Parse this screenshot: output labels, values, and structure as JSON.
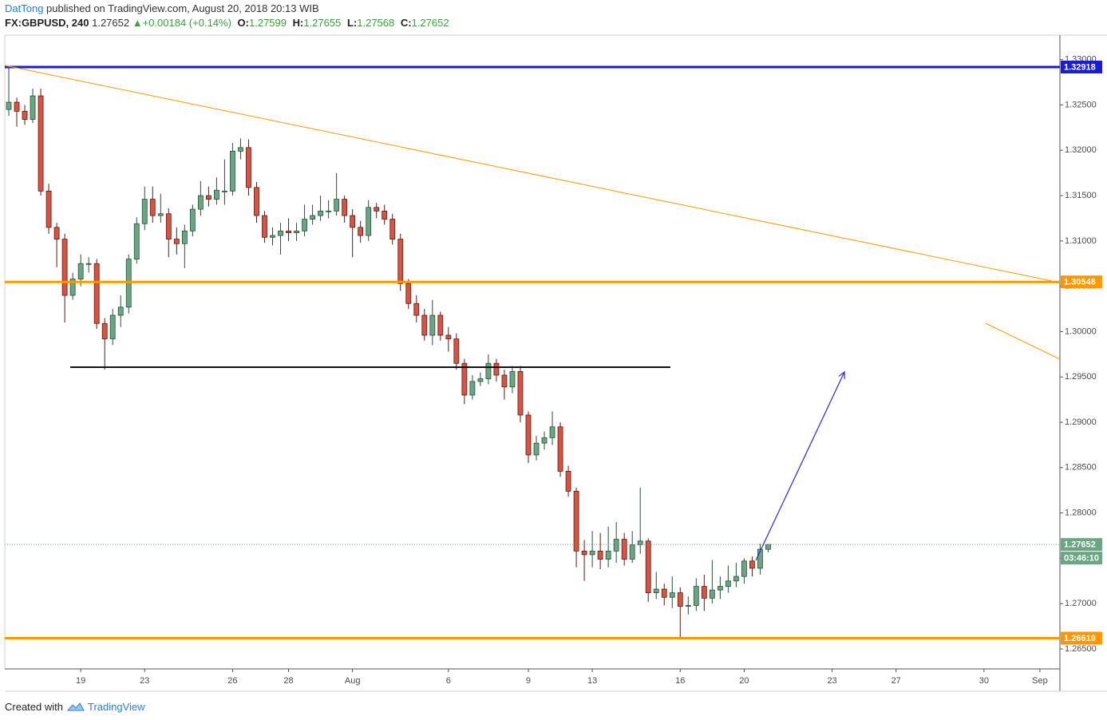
{
  "header": {
    "author": "DatTong",
    "published": "published on TradingView.com, August 20, 2018 20:13 WIB",
    "symbol": "FX:GBPUSD, 240",
    "change": "+0.00184 (+0.14%)",
    "o_label": "O:",
    "h_label": "H:",
    "l_label": "L:",
    "c_label": "C:"
  },
  "footer": {
    "created": "Created with",
    "brand": "TradingView"
  },
  "chart_data": {
    "type": "candlestick",
    "categories": [
      null,
      null,
      null,
      null,
      null,
      null,
      null,
      null,
      null,
      "19",
      null,
      null,
      null,
      null,
      null,
      null,
      null,
      "23",
      null,
      null,
      null,
      null,
      null,
      null,
      null,
      null,
      null,
      null,
      "26",
      null,
      null,
      null,
      null,
      null,
      null,
      "28",
      null,
      null,
      null,
      null,
      null,
      null,
      null,
      "Aug",
      null,
      null,
      null,
      null,
      null,
      null,
      null,
      null,
      null,
      null,
      null,
      "6",
      null,
      null,
      null,
      null,
      null,
      null,
      null,
      null,
      null,
      "9",
      null,
      null,
      null,
      null,
      null,
      null,
      null,
      "13",
      null,
      null,
      null,
      null,
      null,
      null,
      null,
      null,
      null,
      null,
      "16",
      null,
      null,
      null,
      null,
      null,
      null,
      null,
      "20",
      null,
      null,
      null,
      null,
      null,
      null,
      null,
      null,
      null,
      null,
      "23",
      null,
      null,
      null,
      null,
      null,
      null,
      null,
      "27",
      null,
      null,
      null,
      null,
      null,
      null,
      null,
      null,
      null,
      null,
      "30",
      null,
      null,
      null,
      null,
      null,
      null,
      "Sep",
      null,
      null
    ],
    "open": [
      1.3245,
      1.3253,
      1.3243,
      1.3234,
      1.326,
      1.3155,
      1.3115,
      1.3102,
      1.304,
      1.3058,
      1.3075,
      1.3075,
      1.3009,
      1.2992,
      1.3018,
      1.3027,
      1.308,
      1.3119,
      1.3146,
      1.3128,
      1.313,
      1.3102,
      1.3097,
      1.3111,
      1.3135,
      1.315,
      1.3146,
      1.3155,
      1.3155,
      1.3199,
      1.3203,
      1.3159,
      1.3128,
      1.3104,
      1.3106,
      1.3111,
      1.3109,
      1.3111,
      1.3124,
      1.3128,
      1.3133,
      1.3133,
      1.3146,
      1.3128,
      1.3115,
      1.3106,
      1.3137,
      1.3133,
      1.3124,
      1.3102,
      1.3053,
      1.3031,
      1.3018,
      1.2996,
      1.3018,
      1.2996,
      1.2992,
      1.2965,
      1.293,
      1.2945,
      1.2948,
      1.2965,
      1.2952,
      1.2939,
      1.2956,
      1.2908,
      1.2864,
      1.2877,
      1.2883,
      1.2895,
      1.2846,
      1.2824,
      1.2758,
      1.2754,
      1.2758,
      1.2749,
      1.2758,
      1.2771,
      1.2749,
      1.2765,
      1.2769,
      1.2712,
      1.2716,
      1.2707,
      1.2712,
      1.2697,
      1.2698,
      1.2719,
      1.2706,
      1.2715,
      1.2719,
      1.2725,
      1.273,
      1.2747,
      1.2739,
      1.27599,
      null,
      null,
      null,
      null,
      null,
      null,
      null,
      null,
      null,
      null,
      null,
      null,
      null,
      null,
      null,
      null,
      null,
      null,
      null,
      null,
      null,
      null,
      null,
      null,
      null,
      null,
      null,
      null,
      null,
      null,
      null,
      null,
      null,
      null,
      null,
      null
    ],
    "high": [
      1.3292,
      1.3258,
      1.325,
      1.3268,
      1.3268,
      1.3163,
      1.312,
      1.3108,
      1.3065,
      1.3085,
      1.3082,
      1.308,
      1.3015,
      1.3025,
      1.304,
      1.3085,
      1.3126,
      1.316,
      1.316,
      1.3152,
      1.3136,
      1.3115,
      1.3118,
      1.314,
      1.3166,
      1.316,
      1.317,
      1.319,
      1.3208,
      1.3213,
      1.3212,
      1.3165,
      1.3133,
      1.3115,
      1.312,
      1.3125,
      1.312,
      1.314,
      1.314,
      1.315,
      1.3145,
      1.3175,
      1.315,
      1.3135,
      1.3122,
      1.3145,
      1.3142,
      1.314,
      1.313,
      1.3108,
      1.3058,
      1.304,
      1.3025,
      1.3035,
      1.3022,
      1.3005,
      1.2998,
      1.297,
      1.2952,
      1.2955,
      1.2975,
      1.297,
      1.2958,
      1.2962,
      1.2962,
      1.2912,
      1.2885,
      1.289,
      1.2912,
      1.29,
      1.2852,
      1.2828,
      1.277,
      1.278,
      1.2778,
      1.2785,
      1.279,
      1.2778,
      1.278,
      1.2828,
      1.2772,
      1.2735,
      1.2722,
      1.273,
      1.2718,
      1.2708,
      1.2728,
      1.2732,
      1.2748,
      1.273,
      1.2742,
      1.2745,
      1.275,
      1.2752,
      1.2766,
      1.27655,
      null,
      null,
      null,
      null,
      null,
      null,
      null,
      null,
      null,
      null,
      null,
      null,
      null,
      null,
      null,
      null,
      null,
      null,
      null,
      null,
      null,
      null,
      null,
      null,
      null,
      null,
      null,
      null,
      null,
      null,
      null,
      null,
      null,
      null,
      null,
      null
    ],
    "low": [
      1.3238,
      1.3226,
      1.3228,
      1.323,
      1.315,
      1.3108,
      1.3071,
      1.301,
      1.3035,
      1.305,
      1.3065,
      1.3003,
      1.2958,
      1.2985,
      1.3005,
      1.302,
      1.3075,
      1.3112,
      1.312,
      1.312,
      1.3082,
      1.3085,
      1.307,
      1.3105,
      1.3128,
      1.3138,
      1.314,
      1.314,
      1.315,
      1.319,
      1.315,
      1.312,
      1.3098,
      1.3095,
      1.3085,
      1.31,
      1.31,
      1.3105,
      1.3118,
      1.3122,
      1.3125,
      1.3128,
      1.312,
      1.3082,
      1.3098,
      1.31,
      1.3125,
      1.3118,
      1.3096,
      1.3045,
      1.3025,
      1.301,
      1.299,
      1.2985,
      1.299,
      1.2978,
      1.2958,
      1.292,
      1.2925,
      1.294,
      1.2942,
      1.2945,
      1.2925,
      1.2932,
      1.29,
      1.2855,
      1.2858,
      1.287,
      1.2875,
      1.284,
      1.2818,
      1.274,
      1.2725,
      1.274,
      1.2738,
      1.274,
      1.2745,
      1.2742,
      1.2745,
      1.2755,
      1.2702,
      1.2705,
      1.2698,
      1.2695,
      1.2661,
      1.2688,
      1.2692,
      1.2692,
      1.27,
      1.2705,
      1.2712,
      1.2718,
      1.2722,
      1.273,
      1.2732,
      1.27568,
      null,
      null,
      null,
      null,
      null,
      null,
      null,
      null,
      null,
      null,
      null,
      null,
      null,
      null,
      null,
      null,
      null,
      null,
      null,
      null,
      null,
      null,
      null,
      null,
      null,
      null,
      null,
      null,
      null,
      null,
      null,
      null,
      null,
      null,
      null,
      null
    ],
    "close": [
      1.3253,
      1.3243,
      1.3234,
      1.326,
      1.3155,
      1.3115,
      1.3102,
      1.304,
      1.3058,
      1.3075,
      1.3075,
      1.3009,
      1.2992,
      1.3018,
      1.3027,
      1.308,
      1.3119,
      1.3146,
      1.3128,
      1.313,
      1.3102,
      1.3097,
      1.3111,
      1.3135,
      1.315,
      1.3146,
      1.3156,
      1.3155,
      1.3199,
      1.3203,
      1.3159,
      1.3128,
      1.3104,
      1.3106,
      1.3111,
      1.3109,
      1.3111,
      1.3124,
      1.3128,
      1.3133,
      1.3133,
      1.3146,
      1.3128,
      1.3115,
      1.3106,
      1.3137,
      1.3133,
      1.3124,
      1.3102,
      1.3053,
      1.3031,
      1.3018,
      1.2996,
      1.3018,
      1.2996,
      1.2992,
      1.2965,
      1.293,
      1.2945,
      1.2948,
      1.2965,
      1.2952,
      1.2939,
      1.2956,
      1.2908,
      1.2864,
      1.2877,
      1.2883,
      1.2895,
      1.2846,
      1.2824,
      1.2758,
      1.2754,
      1.2758,
      1.2749,
      1.2758,
      1.2771,
      1.2749,
      1.2765,
      1.2769,
      1.2712,
      1.2716,
      1.2707,
      1.2712,
      1.2697,
      1.2698,
      1.2719,
      1.2706,
      1.2715,
      1.2719,
      1.2725,
      1.273,
      1.2747,
      1.2739,
      1.276,
      1.27652,
      null,
      null,
      null,
      null,
      null,
      null,
      null,
      null,
      null,
      null,
      null,
      null,
      null,
      null,
      null,
      null,
      null,
      null,
      null,
      null,
      null,
      null,
      null,
      null,
      null,
      null,
      null,
      null,
      null,
      null,
      null,
      null,
      null,
      null,
      null,
      null
    ],
    "up_color": "#6ba583",
    "down_color": "#d75442",
    "up_wick": "#225437",
    "down_wick": "#5b1a13",
    "ylim": [
      1.2628,
      1.3327
    ],
    "yticks": [
      {
        "value": 1.33,
        "label": "1.33000"
      },
      {
        "value": 1.325,
        "label": "1.32500"
      },
      {
        "value": 1.32,
        "label": "1.32000"
      },
      {
        "value": 1.315,
        "label": "1.31500"
      },
      {
        "value": 1.31,
        "label": "1.31000"
      },
      {
        "value": 1.305,
        "label": "1.30500"
      },
      {
        "value": 1.3,
        "label": "1.30000"
      },
      {
        "value": 1.295,
        "label": "1.29500"
      },
      {
        "value": 1.29,
        "label": "1.29000"
      },
      {
        "value": 1.285,
        "label": "1.28500"
      },
      {
        "value": 1.28,
        "label": "1.28000"
      },
      {
        "value": 1.275,
        "label": "1.27500"
      },
      {
        "value": 1.27,
        "label": "1.27000"
      },
      {
        "value": 1.265,
        "label": "1.26500"
      }
    ],
    "grid": false,
    "levels": [
      {
        "value": 1.32918,
        "color": "#1b1bcf"
      },
      {
        "value": 1.30548,
        "color": "#ff9800"
      },
      {
        "value": 1.26619,
        "color": "#ff9800"
      }
    ],
    "countdown": "03:46:10"
  }
}
